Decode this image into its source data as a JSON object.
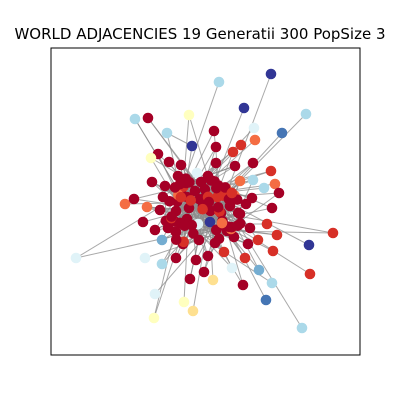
{
  "figure": {
    "title": "WORLD ADJACENCIES 19 Generatii 300 PopSize 3"
  },
  "graph": {
    "palette": {
      "dark-red": "#a50026",
      "red": "#d73027",
      "orange": "#f46d43",
      "light-orange": "#fdae61",
      "pale-yellow": "#fee090",
      "cream": "#ffffbf",
      "pale-blue": "#e0f3f8",
      "light-blue": "#abd9e9",
      "sky-blue": "#74add1",
      "steel-blue": "#4575b4",
      "navy": "#313695"
    },
    "edge_color": "#8c8c8c",
    "node_count": 150
  }
}
